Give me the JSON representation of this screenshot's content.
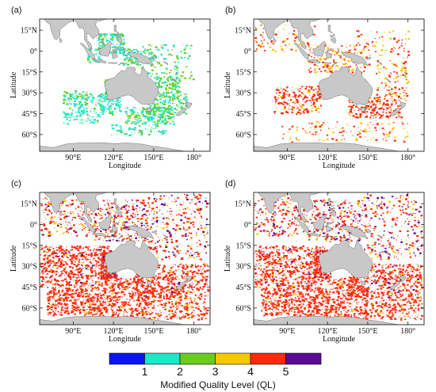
{
  "panels": [
    {
      "label": "(a)"
    },
    {
      "label": "(b)"
    },
    {
      "label": "(c)"
    },
    {
      "label": "(d)"
    }
  ],
  "axes": {
    "xlabel": "Longitude",
    "ylabel": "Latitude",
    "lon_ticks": [
      "90°E",
      "120°E",
      "150°E",
      "180°"
    ],
    "lat_ticks": [
      "15°N",
      "0°",
      "15°S",
      "30°S",
      "45°S",
      "60°S"
    ]
  },
  "colorbar": {
    "title": "Modified Quality Level (QL)",
    "levels": [
      {
        "level": "1",
        "color": "#0a14f0"
      },
      {
        "level": "2",
        "color": "#1ee6c8"
      },
      {
        "level": "3",
        "color": "#6acc1e"
      },
      {
        "level": "4",
        "color": "#f5c800"
      },
      {
        "level": "5",
        "color": "#ff2a0a"
      },
      {
        "level": "",
        "color": "#5a0a96"
      }
    ]
  },
  "colors": {
    "land": "#c8c8c8",
    "land_edge": "#555555"
  }
}
